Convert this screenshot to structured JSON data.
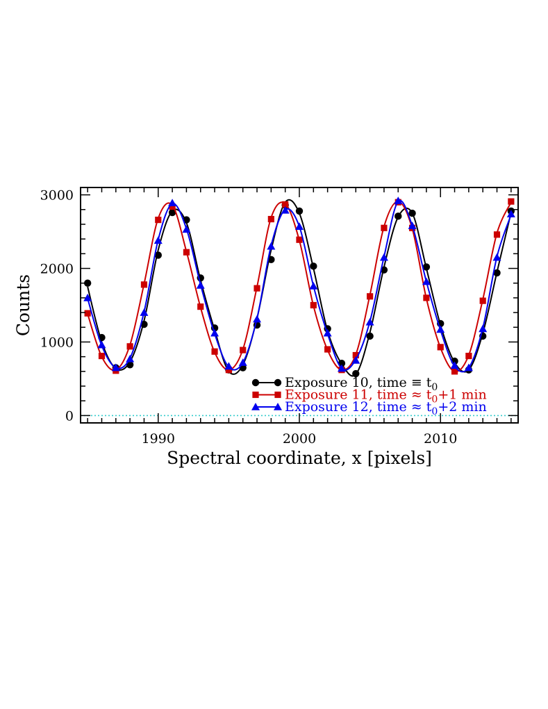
{
  "chart_data": {
    "type": "line",
    "xlabel": "Spectral coordinate, x [pixels]",
    "ylabel": "Counts",
    "xlim": [
      1984.5,
      2015.5
    ],
    "ylim": [
      -100,
      3100
    ],
    "x_ticks": [
      1990,
      2000,
      2010
    ],
    "x_tick_labels": [
      "1990",
      "2000",
      "2010"
    ],
    "y_ticks": [
      0,
      1000,
      2000,
      3000
    ],
    "y_tick_labels": [
      "0",
      "1000",
      "2000",
      "3000"
    ],
    "legend_position": "bottom-right",
    "baseline": {
      "value": 0,
      "style": "dotted",
      "color": "#33cccc"
    },
    "series": [
      {
        "label_main": "Exposure  10,  time",
        "label_rel": "≡",
        "label_sub_t": "t",
        "label_sub": "0",
        "label_tail": "",
        "color": "#000000",
        "marker": "circle",
        "x": [
          1985,
          1986,
          1987,
          1988,
          1989,
          1990,
          1991,
          1992,
          1993,
          1994,
          1995,
          1996,
          1997,
          1998,
          1999,
          2000,
          2001,
          2002,
          2003,
          2004,
          2005,
          2006,
          2007,
          2008,
          2009,
          2010,
          2011,
          2012,
          2013,
          2014,
          2015
        ],
        "y": [
          1800,
          1060,
          650,
          690,
          1240,
          2180,
          2760,
          2660,
          1870,
          1190,
          620,
          650,
          1230,
          2120,
          2860,
          2780,
          2030,
          1180,
          710,
          570,
          1080,
          1980,
          2710,
          2750,
          2020,
          1250,
          740,
          620,
          1080,
          1940,
          2780
        ],
        "curve_x": [
          1985,
          1986,
          1987,
          1988,
          1989,
          1990,
          1991,
          1992,
          1993,
          1994,
          1995,
          1996,
          1997,
          1998,
          1999,
          2000,
          2001,
          2002,
          2003,
          2004,
          2005,
          2006,
          2007,
          2008,
          2009,
          2010,
          2011,
          2012,
          2013,
          2014,
          2015
        ],
        "curve_y": [
          1750,
          1000,
          640,
          730,
          1290,
          2250,
          2780,
          2620,
          1840,
          1160,
          600,
          690,
          1320,
          2250,
          2900,
          2750,
          2000,
          1150,
          700,
          560,
          1130,
          2020,
          2700,
          2750,
          2000,
          1230,
          720,
          620,
          1120,
          1950,
          2760
        ]
      },
      {
        "label_main": "Exposure  11,  time",
        "label_rel": "≈",
        "label_sub_t": "t",
        "label_sub": "0",
        "label_tail": "+1 min",
        "color": "#cc0000",
        "marker": "square",
        "x": [
          1985,
          1986,
          1987,
          1988,
          1989,
          1990,
          1991,
          1992,
          1993,
          1994,
          1995,
          1996,
          1997,
          1998,
          1999,
          2000,
          2001,
          2002,
          2003,
          2004,
          2005,
          2006,
          2007,
          2008,
          2009,
          2010,
          2011,
          2012,
          2013,
          2014,
          2015
        ],
        "y": [
          1390,
          810,
          610,
          940,
          1780,
          2660,
          2840,
          2220,
          1480,
          870,
          620,
          890,
          1730,
          2670,
          2870,
          2390,
          1500,
          900,
          620,
          820,
          1620,
          2550,
          2900,
          2550,
          1600,
          930,
          600,
          810,
          1560,
          2460,
          2910
        ],
        "curve_x": [
          1985,
          1986,
          1987,
          1988,
          1989,
          1990,
          1991,
          1992,
          1993,
          1994,
          1995,
          1996,
          1997,
          1998,
          1999,
          2000,
          2001,
          2002,
          2003,
          2004,
          2005,
          2006,
          2007,
          2008,
          2009,
          2010,
          2011,
          2012,
          2013,
          2014,
          2015
        ],
        "curve_y": [
          1380,
          800,
          620,
          960,
          1790,
          2680,
          2860,
          2230,
          1470,
          860,
          620,
          900,
          1750,
          2690,
          2880,
          2380,
          1490,
          890,
          620,
          830,
          1640,
          2570,
          2910,
          2540,
          1590,
          920,
          600,
          820,
          1580,
          2480,
          2900
        ]
      },
      {
        "label_main": "Exposure  12,  time",
        "label_rel": "≈",
        "label_sub_t": "t",
        "label_sub": "0",
        "label_tail": "+2 min",
        "color": "#0000ee",
        "marker": "triangle",
        "x": [
          1985,
          1986,
          1987,
          1988,
          1989,
          1990,
          1991,
          1992,
          1993,
          1994,
          1995,
          1996,
          1997,
          1998,
          1999,
          2000,
          2001,
          2002,
          2003,
          2004,
          2005,
          2006,
          2007,
          2008,
          2009,
          2010,
          2011,
          2012,
          2013,
          2014,
          2015
        ],
        "y": [
          1600,
          960,
          650,
          770,
          1400,
          2380,
          2890,
          2530,
          1770,
          1120,
          670,
          720,
          1310,
          2300,
          2790,
          2570,
          1760,
          1120,
          640,
          750,
          1270,
          2150,
          2920,
          2580,
          1820,
          1170,
          680,
          650,
          1180,
          2150,
          2740
        ],
        "curve_x": [
          1985,
          1986,
          1987,
          1988,
          1989,
          1990,
          1991,
          1992,
          1993,
          1994,
          1995,
          1996,
          1997,
          1998,
          1999,
          2000,
          2001,
          2002,
          2003,
          2004,
          2005,
          2006,
          2007,
          2008,
          2009,
          2010,
          2011,
          2012,
          2013,
          2014,
          2015
        ],
        "curve_y": [
          1590,
          950,
          650,
          780,
          1410,
          2390,
          2880,
          2540,
          1780,
          1110,
          660,
          720,
          1320,
          2310,
          2800,
          2570,
          1760,
          1110,
          640,
          760,
          1280,
          2160,
          2910,
          2580,
          1820,
          1160,
          670,
          650,
          1190,
          2160,
          2730
        ]
      }
    ]
  }
}
